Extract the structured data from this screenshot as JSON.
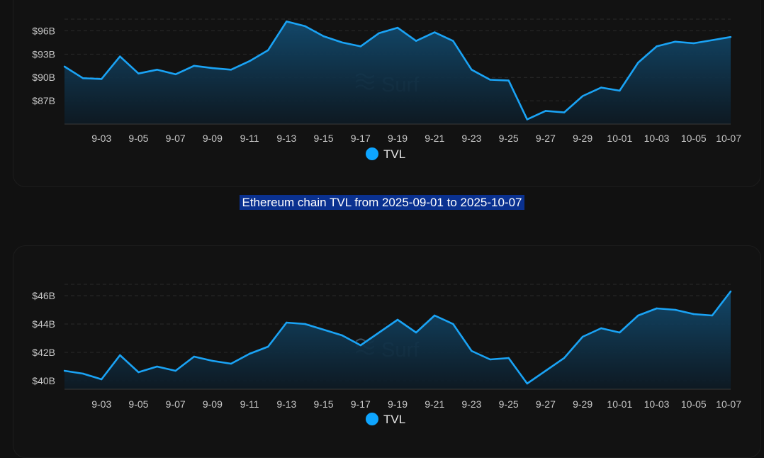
{
  "caption": "Ethereum chain TVL from 2025-09-01 to 2025-10-07",
  "watermark": "Surf",
  "colors": {
    "line": "#1aa3f5",
    "legend_dot": "#0ea5ff",
    "background": "#111111"
  },
  "chart_data": [
    {
      "type": "area",
      "x": [
        "9-01",
        "9-02",
        "9-03",
        "9-04",
        "9-05",
        "9-06",
        "9-07",
        "9-08",
        "9-09",
        "9-10",
        "9-11",
        "9-12",
        "9-13",
        "9-14",
        "9-15",
        "9-16",
        "9-17",
        "9-18",
        "9-19",
        "9-20",
        "9-21",
        "9-22",
        "9-23",
        "9-24",
        "9-25",
        "9-26",
        "9-27",
        "9-28",
        "9-29",
        "9-30",
        "10-01",
        "10-02",
        "10-03",
        "10-04",
        "10-05",
        "10-06",
        "10-07"
      ],
      "x_tick_labels": [
        "9-03",
        "9-05",
        "9-07",
        "9-09",
        "9-11",
        "9-13",
        "9-15",
        "9-17",
        "9-19",
        "9-21",
        "9-23",
        "9-25",
        "9-27",
        "9-29",
        "10-01",
        "10-03",
        "10-05",
        "10-07"
      ],
      "series": [
        {
          "name": "TVL",
          "values": [
            91.4,
            89.9,
            89.8,
            92.7,
            90.5,
            91.0,
            90.4,
            91.5,
            91.2,
            91.0,
            92.1,
            93.5,
            97.2,
            96.6,
            95.3,
            94.5,
            94.0,
            95.7,
            96.4,
            94.7,
            95.8,
            94.7,
            91.0,
            89.7,
            89.6,
            84.6,
            85.7,
            85.5,
            87.6,
            88.7,
            88.3,
            91.9,
            94.0,
            94.6,
            94.4,
            94.8,
            95.2
          ]
        }
      ],
      "y_tick_labels": [
        "$87B",
        "$90B",
        "$93B",
        "$96B"
      ],
      "y_ticks": [
        87,
        90,
        93,
        96
      ],
      "ylim": [
        84,
        97.5
      ],
      "grid": "horizontal-dashed",
      "legend": "bottom-center"
    },
    {
      "type": "area",
      "x": [
        "9-01",
        "9-02",
        "9-03",
        "9-04",
        "9-05",
        "9-06",
        "9-07",
        "9-08",
        "9-09",
        "9-10",
        "9-11",
        "9-12",
        "9-13",
        "9-14",
        "9-15",
        "9-16",
        "9-17",
        "9-18",
        "9-19",
        "9-20",
        "9-21",
        "9-22",
        "9-23",
        "9-24",
        "9-25",
        "9-26",
        "9-27",
        "9-28",
        "9-29",
        "9-30",
        "10-01",
        "10-02",
        "10-03",
        "10-04",
        "10-05",
        "10-06",
        "10-07"
      ],
      "x_tick_labels": [
        "9-03",
        "9-05",
        "9-07",
        "9-09",
        "9-11",
        "9-13",
        "9-15",
        "9-17",
        "9-19",
        "9-21",
        "9-23",
        "9-25",
        "9-27",
        "9-29",
        "10-01",
        "10-03",
        "10-05",
        "10-07"
      ],
      "series": [
        {
          "name": "TVL",
          "values": [
            40.7,
            40.5,
            40.1,
            41.8,
            40.6,
            41.0,
            40.7,
            41.7,
            41.4,
            41.2,
            41.9,
            42.4,
            44.1,
            44.0,
            43.6,
            43.2,
            42.5,
            43.4,
            44.3,
            43.4,
            44.6,
            44.0,
            42.1,
            41.5,
            41.6,
            39.8,
            40.7,
            41.6,
            43.1,
            43.7,
            43.4,
            44.6,
            45.1,
            45.0,
            44.7,
            44.6,
            46.3
          ]
        }
      ],
      "y_tick_labels": [
        "$40B",
        "$42B",
        "$44B",
        "$46B"
      ],
      "y_ticks": [
        40,
        42,
        44,
        46
      ],
      "ylim": [
        39.4,
        46.8
      ],
      "grid": "horizontal-dashed",
      "legend": "bottom-center"
    }
  ]
}
